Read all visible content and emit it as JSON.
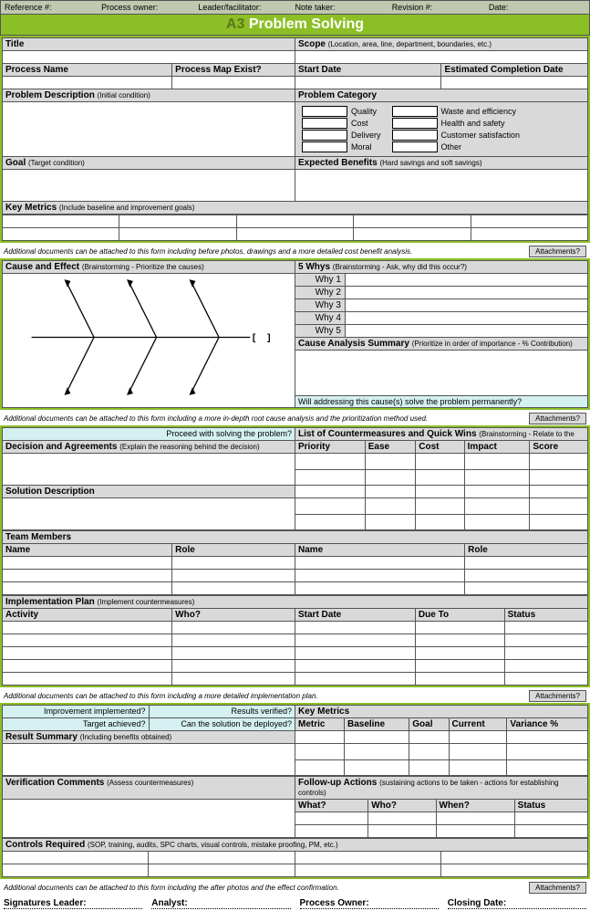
{
  "meta": {
    "reference": "Reference #:",
    "process_owner": "Process owner:",
    "leader": "Leader/facilitator:",
    "note_taker": "Note taker:",
    "revision": "Revision #:",
    "date": "Date:"
  },
  "title": {
    "prefix": "A3",
    "main": "Problem Solving"
  },
  "s1": {
    "title": "Title",
    "scope": "Scope",
    "scope_hint": "(Location, area, line, department, boundaries, etc.)",
    "process_name": "Process Name",
    "map_exist": "Process Map Exist?",
    "start_date": "Start Date",
    "est_comp": "Estimated Completion Date",
    "prob_desc": "Problem Description",
    "prob_desc_hint": "(Initial condition)",
    "prob_cat": "Problem Category",
    "goal": "Goal",
    "goal_hint": "(Target condition)",
    "exp_ben": "Expected Benefits",
    "exp_ben_hint": "(Hard savings and soft savings)",
    "key_metrics": "Key Metrics",
    "key_metrics_hint": "(Include baseline and improvement goals)",
    "cats_left": [
      "Quality",
      "Cost",
      "Delivery",
      "Moral"
    ],
    "cats_right": [
      "Waste and efficiency",
      "Health and safety",
      "Customer satisfaction",
      "Other"
    ],
    "foot": "Additional documents can be attached to this form including before photos, drawings and a more detailed cost benefit analysis.",
    "attach": "Attachments?"
  },
  "s2": {
    "cause_effect": "Cause and Effect",
    "cause_effect_hint": "(Brainstorming - Prioritize the causes)",
    "five_whys": "5 Whys",
    "five_whys_hint": "(Brainstorming - Ask, why did this occur?)",
    "whys": [
      "Why 1",
      "Why 2",
      "Why 3",
      "Why 4",
      "Why 5"
    ],
    "cause_summary": "Cause Analysis Summary",
    "cause_summary_hint": "(Prioritize in order of importance - % Contribution)",
    "will_q": "Will addressing this cause(s) solve the problem permanently?",
    "foot": "Additional documents can be attached to this form including a more in-depth root cause analysis and the prioritization method used.",
    "attach": "Attachments?"
  },
  "s3": {
    "proceed": "Proceed with solving the problem?",
    "list_cm": "List of Countermeasures and Quick Wins",
    "list_cm_hint": "(Brainstorming - Relate to the",
    "decision": "Decision and Agreements",
    "decision_hint": "(Explain the reasoning behind the decision)",
    "cols": [
      "Priority",
      "Ease",
      "Cost",
      "Impact",
      "Score"
    ],
    "sol_desc": "Solution Description",
    "team": "Team Members",
    "name": "Name",
    "role": "Role",
    "impl_plan": "Implementation Plan",
    "impl_plan_hint": "(Implement countermeasures)",
    "plan_cols": [
      "Activity",
      "Who?",
      "Start Date",
      "Due To",
      "Status"
    ],
    "foot": "Additional documents can be attached to this form including a more detailed implementation plan.",
    "attach": "Attachments?"
  },
  "s4": {
    "impl": "Improvement implemented?",
    "results": "Results verified?",
    "target": "Target achieved?",
    "deploy": "Can the solution be deployed?",
    "key_metrics": "Key Metrics",
    "metric_cols": [
      "Metric",
      "Baseline",
      "Goal",
      "Current",
      "Variance %"
    ],
    "result_sum": "Result Summary",
    "result_sum_hint": "(Including benefits obtained)",
    "verif": "Verification Comments",
    "verif_hint": "(Assess countermeasures)",
    "followup": "Follow-up Actions",
    "followup_hint": "(sustaining actions to be taken - actions for establishing controls)",
    "fu_cols": [
      "What?",
      "Who?",
      "When?",
      "Status"
    ],
    "controls": "Controls Required",
    "controls_hint": "(SOP, training, audits, SPC charts, visual controls, mistake proofing, PM, etc.)",
    "foot": "Additional documents can be attached to this form including the after photos and the effect confirmation.",
    "attach": "Attachments?"
  },
  "sig": {
    "leader": "Signatures Leader:",
    "analyst": "Analyst:",
    "owner": "Process Owner:",
    "closing": "Closing Date:"
  }
}
